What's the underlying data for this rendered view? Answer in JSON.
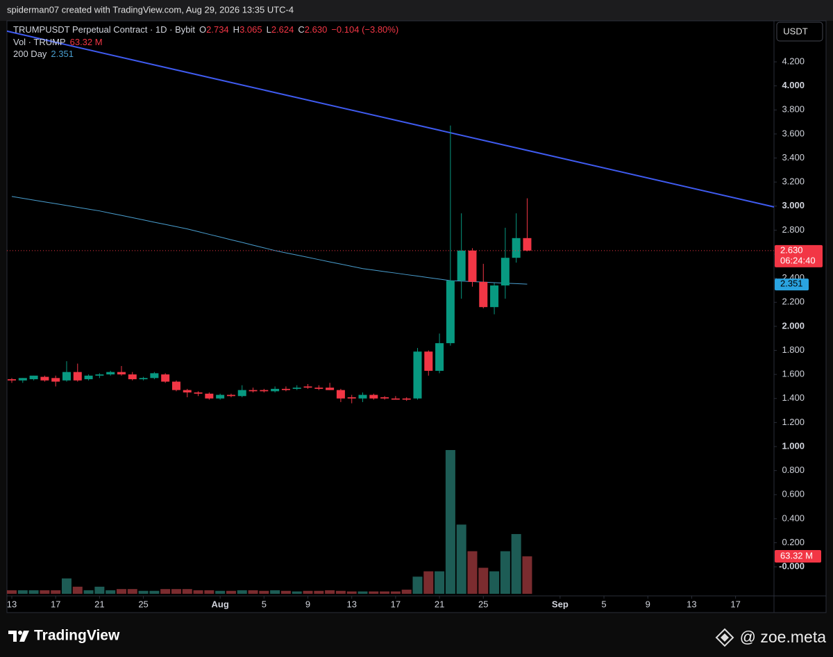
{
  "header": "spiderman07 created with TradingView.com, Aug 29, 2026 13:35 UTC-4",
  "chart_data": {
    "type": "candlestick",
    "currency": "USDT",
    "legend": {
      "symbol": "TRUMPUSDT Perpetual Contract · 1D · Bybit",
      "ohlc": [
        {
          "key": "O",
          "value": "2.734"
        },
        {
          "key": "H",
          "value": "3.065"
        },
        {
          "key": "L",
          "value": "2.624"
        },
        {
          "key": "C",
          "value": "2.630"
        }
      ],
      "change": "−0.104 (−3.80%)",
      "volume_name": "Vol · TRUMP"
    },
    "x": [
      "2026-07-13",
      "2026-07-14",
      "2026-07-15",
      "2026-07-16",
      "2026-07-17",
      "2026-07-18",
      "2026-07-19",
      "2026-07-20",
      "2026-07-21",
      "2026-07-22",
      "2026-07-23",
      "2026-07-24",
      "2026-07-25",
      "2026-07-26",
      "2026-07-27",
      "2026-07-28",
      "2026-07-29",
      "2026-07-30",
      "2026-07-31",
      "2026-08-01",
      "2026-08-02",
      "2026-08-03",
      "2026-08-04",
      "2026-08-05",
      "2026-08-06",
      "2026-08-07",
      "2026-08-08",
      "2026-08-09",
      "2026-08-10",
      "2026-08-11",
      "2026-08-12",
      "2026-08-13",
      "2026-08-14",
      "2026-08-15",
      "2026-08-16",
      "2026-08-17",
      "2026-08-18",
      "2026-08-19",
      "2026-08-20",
      "2026-08-21",
      "2026-08-22",
      "2026-08-23",
      "2026-08-24",
      "2026-08-25",
      "2026-08-26",
      "2026-08-27",
      "2026-08-28",
      "2026-08-29"
    ],
    "open": [
      1.56,
      1.55,
      1.56,
      1.58,
      1.57,
      1.55,
      1.62,
      1.56,
      1.59,
      1.6,
      1.62,
      1.6,
      1.56,
      1.57,
      1.6,
      1.54,
      1.47,
      1.45,
      1.44,
      1.4,
      1.43,
      1.42,
      1.47,
      1.47,
      1.46,
      1.48,
      1.48,
      1.5,
      1.49,
      1.49,
      1.47,
      1.41,
      1.4,
      1.43,
      1.41,
      1.4,
      1.4,
      1.4,
      1.79,
      1.63,
      1.86,
      2.38,
      2.63,
      2.37,
      2.16,
      2.34,
      2.57,
      2.734
    ],
    "high": [
      1.57,
      1.57,
      1.59,
      1.59,
      1.59,
      1.71,
      1.69,
      1.6,
      1.61,
      1.63,
      1.67,
      1.62,
      1.58,
      1.62,
      1.61,
      1.55,
      1.48,
      1.46,
      1.45,
      1.44,
      1.44,
      1.51,
      1.49,
      1.48,
      1.5,
      1.5,
      1.51,
      1.52,
      1.51,
      1.53,
      1.48,
      1.43,
      1.45,
      1.44,
      1.42,
      1.42,
      1.41,
      1.82,
      1.8,
      1.94,
      3.67,
      2.94,
      2.65,
      2.52,
      2.36,
      2.82,
      2.94,
      3.065
    ],
    "low": [
      1.53,
      1.53,
      1.55,
      1.54,
      1.5,
      1.54,
      1.54,
      1.55,
      1.57,
      1.59,
      1.59,
      1.55,
      1.55,
      1.56,
      1.53,
      1.46,
      1.41,
      1.42,
      1.39,
      1.39,
      1.41,
      1.41,
      1.45,
      1.45,
      1.45,
      1.46,
      1.47,
      1.48,
      1.47,
      1.47,
      1.37,
      1.36,
      1.37,
      1.39,
      1.39,
      1.39,
      1.38,
      1.39,
      1.59,
      1.61,
      1.84,
      2.23,
      2.33,
      2.15,
      2.1,
      2.23,
      2.53,
      2.624
    ],
    "close": [
      1.55,
      1.57,
      1.59,
      1.55,
      1.54,
      1.62,
      1.55,
      1.59,
      1.6,
      1.62,
      1.6,
      1.56,
      1.57,
      1.61,
      1.54,
      1.47,
      1.45,
      1.44,
      1.4,
      1.43,
      1.42,
      1.47,
      1.46,
      1.46,
      1.48,
      1.47,
      1.49,
      1.49,
      1.48,
      1.47,
      1.4,
      1.4,
      1.43,
      1.4,
      1.4,
      1.39,
      1.39,
      1.79,
      1.63,
      1.86,
      2.38,
      2.63,
      2.37,
      2.16,
      2.34,
      2.57,
      2.734,
      2.63
    ],
    "volume": [
      6,
      6,
      6,
      6,
      6,
      26,
      12,
      6,
      12,
      6,
      8,
      8,
      5,
      5,
      8,
      8,
      8,
      6,
      6,
      5,
      5,
      6,
      6,
      5,
      6,
      5,
      4,
      5,
      5,
      6,
      5,
      4,
      4,
      4,
      4,
      4,
      7,
      29,
      38,
      38,
      243,
      117,
      72,
      44,
      38,
      72,
      101,
      63.32
    ],
    "volume_label": "63.32 M",
    "up_color": "#089981",
    "down_color": "#f23645",
    "volume_up_color": "#1d5c55",
    "volume_down_color": "#7b2c2f",
    "ma": {
      "name": "200 Day",
      "color": "#4a9fd0",
      "values": [
        3.08,
        3.065,
        3.05,
        3.035,
        3.02,
        3.005,
        2.99,
        2.975,
        2.96,
        2.941,
        2.923,
        2.904,
        2.885,
        2.866,
        2.848,
        2.829,
        2.81,
        2.788,
        2.765,
        2.743,
        2.72,
        2.698,
        2.675,
        2.653,
        2.63,
        2.611,
        2.593,
        2.574,
        2.555,
        2.536,
        2.518,
        2.499,
        2.48,
        2.468,
        2.455,
        2.443,
        2.43,
        2.418,
        2.405,
        2.393,
        2.38,
        2.376,
        2.372,
        2.368,
        2.363,
        2.359,
        2.355,
        2.351
      ]
    },
    "trendline": {
      "color": "#3f5bf0",
      "x": [
        "2026-07-12",
        "2026-09-21"
      ],
      "values": [
        4.467,
        2.983
      ]
    },
    "last_price": {
      "label": "2.630",
      "countdown": "06:24:40"
    },
    "ylim": [
      -0.242,
      4.541
    ],
    "yticks": [
      {
        "value": 0,
        "label": "-0.000"
      },
      {
        "value": 0.2,
        "label": "0.200"
      },
      {
        "value": 0.4,
        "label": "0.400"
      },
      {
        "value": 0.6,
        "label": "0.600"
      },
      {
        "value": 0.8,
        "label": "0.800"
      },
      {
        "value": 1,
        "label": "1.000"
      },
      {
        "value": 1.2,
        "label": "1.200"
      },
      {
        "value": 1.4,
        "label": "1.400"
      },
      {
        "value": 1.6,
        "label": "1.600"
      },
      {
        "value": 1.8,
        "label": "1.800"
      },
      {
        "value": 2,
        "label": "2.000"
      },
      {
        "value": 2.2,
        "label": "2.200"
      },
      {
        "value": 2.4,
        "label": "2.400"
      },
      {
        "value": 2.6,
        "label": "2.600"
      },
      {
        "value": 2.8,
        "label": "2.800"
      },
      {
        "value": 3,
        "label": "3.000"
      },
      {
        "value": 3.2,
        "label": "3.200"
      },
      {
        "value": 3.4,
        "label": "3.400"
      },
      {
        "value": 3.6,
        "label": "3.600"
      },
      {
        "value": 3.8,
        "label": "3.800"
      },
      {
        "value": 4,
        "label": "4.000"
      },
      {
        "value": 4.2,
        "label": "4.200"
      }
    ],
    "xlim": [
      "2026-07-13",
      "2026-09-20"
    ],
    "xticks": [
      {
        "value": "2026-07-13",
        "label": "13"
      },
      {
        "value": "2026-07-17",
        "label": "17"
      },
      {
        "value": "2026-07-21",
        "label": "21"
      },
      {
        "value": "2026-07-25",
        "label": "25"
      },
      {
        "value": "2026-08-01",
        "label": "Aug"
      },
      {
        "value": "2026-08-05",
        "label": "5"
      },
      {
        "value": "2026-08-09",
        "label": "9"
      },
      {
        "value": "2026-08-13",
        "label": "13"
      },
      {
        "value": "2026-08-17",
        "label": "17"
      },
      {
        "value": "2026-08-21",
        "label": "21"
      },
      {
        "value": "2026-08-25",
        "label": "25"
      },
      {
        "value": "2026-09-01",
        "label": "Sep"
      },
      {
        "value": "2026-09-05",
        "label": "5"
      },
      {
        "value": "2026-09-09",
        "label": "9"
      },
      {
        "value": "2026-09-13",
        "label": "13"
      },
      {
        "value": "2026-09-17",
        "label": "17"
      }
    ]
  },
  "footer": {
    "brand": "TradingView",
    "credit": "@ zoe.meta"
  }
}
